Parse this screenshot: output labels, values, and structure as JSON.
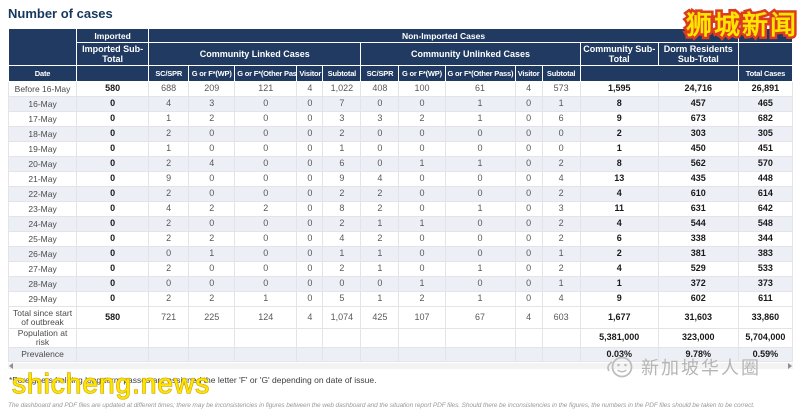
{
  "chart_data": {
    "type": "table",
    "title": "Number of cases",
    "header": {
      "imported_group": "Imported",
      "non_imported_group": "Non-Imported Cases",
      "imported_sub_total": "Imported Sub-Total",
      "community_linked_group": "Community Linked Cases",
      "community_unlinked_group": "Community Unlinked Cases",
      "sub_columns": [
        "SC/SPR",
        "G or F*(WP)",
        "G or F*(Other Pass)",
        "Visitor",
        "Subtotal"
      ],
      "date": "Date",
      "community_sub_total": "Community Sub-Total",
      "dorm_residents_sub_total": "Dorm Residents Sub-Total",
      "total_cases": "Total Cases"
    },
    "columns": [
      "Date",
      "Imported Sub-Total",
      "Community Linked SC/SPR",
      "Community Linked G or F*(WP)",
      "Community Linked G or F*(Other Pass)",
      "Community Linked Visitor",
      "Community Linked Subtotal",
      "Community Unlinked SC/SPR",
      "Community Unlinked G or F*(WP)",
      "Community Unlinked G or F*(Other Pass)",
      "Community Unlinked Visitor",
      "Community Unlinked Subtotal",
      "Community Sub-Total",
      "Dorm Residents Sub-Total",
      "Total Cases"
    ],
    "rows": [
      {
        "label": "Before 16-May",
        "kind": "data",
        "values": [
          "580",
          "688",
          "209",
          "121",
          "4",
          "1,022",
          "408",
          "100",
          "61",
          "4",
          "573",
          "1,595",
          "24,716",
          "26,891"
        ]
      },
      {
        "label": "16-May",
        "kind": "data",
        "values": [
          "0",
          "4",
          "3",
          "0",
          "0",
          "7",
          "0",
          "0",
          "1",
          "0",
          "1",
          "8",
          "457",
          "465"
        ]
      },
      {
        "label": "17-May",
        "kind": "data",
        "values": [
          "0",
          "1",
          "2",
          "0",
          "0",
          "3",
          "3",
          "2",
          "1",
          "0",
          "6",
          "9",
          "673",
          "682"
        ]
      },
      {
        "label": "18-May",
        "kind": "data",
        "values": [
          "0",
          "2",
          "0",
          "0",
          "0",
          "2",
          "0",
          "0",
          "0",
          "0",
          "0",
          "2",
          "303",
          "305"
        ]
      },
      {
        "label": "19-May",
        "kind": "data",
        "values": [
          "0",
          "1",
          "0",
          "0",
          "0",
          "1",
          "0",
          "0",
          "0",
          "0",
          "0",
          "1",
          "450",
          "451"
        ]
      },
      {
        "label": "20-May",
        "kind": "data",
        "values": [
          "0",
          "2",
          "4",
          "0",
          "0",
          "6",
          "0",
          "1",
          "1",
          "0",
          "2",
          "8",
          "562",
          "570"
        ]
      },
      {
        "label": "21-May",
        "kind": "data",
        "values": [
          "0",
          "9",
          "0",
          "0",
          "0",
          "9",
          "4",
          "0",
          "0",
          "0",
          "4",
          "13",
          "435",
          "448"
        ]
      },
      {
        "label": "22-May",
        "kind": "data",
        "values": [
          "0",
          "2",
          "0",
          "0",
          "0",
          "2",
          "2",
          "0",
          "0",
          "0",
          "2",
          "4",
          "610",
          "614"
        ]
      },
      {
        "label": "23-May",
        "kind": "data",
        "values": [
          "0",
          "4",
          "2",
          "2",
          "0",
          "8",
          "2",
          "0",
          "1",
          "0",
          "3",
          "11",
          "631",
          "642"
        ]
      },
      {
        "label": "24-May",
        "kind": "data",
        "values": [
          "0",
          "2",
          "0",
          "0",
          "0",
          "2",
          "1",
          "1",
          "0",
          "0",
          "2",
          "4",
          "544",
          "548"
        ]
      },
      {
        "label": "25-May",
        "kind": "data",
        "values": [
          "0",
          "2",
          "2",
          "0",
          "0",
          "4",
          "2",
          "0",
          "0",
          "0",
          "2",
          "6",
          "338",
          "344"
        ]
      },
      {
        "label": "26-May",
        "kind": "data",
        "values": [
          "0",
          "0",
          "1",
          "0",
          "0",
          "1",
          "1",
          "0",
          "0",
          "0",
          "1",
          "2",
          "381",
          "383"
        ]
      },
      {
        "label": "27-May",
        "kind": "data",
        "values": [
          "0",
          "2",
          "0",
          "0",
          "0",
          "2",
          "1",
          "0",
          "1",
          "0",
          "2",
          "4",
          "529",
          "533"
        ]
      },
      {
        "label": "28-May",
        "kind": "data",
        "values": [
          "0",
          "0",
          "0",
          "0",
          "0",
          "0",
          "0",
          "1",
          "0",
          "0",
          "1",
          "1",
          "372",
          "373"
        ]
      },
      {
        "label": "29-May",
        "kind": "data",
        "values": [
          "0",
          "2",
          "2",
          "1",
          "0",
          "5",
          "1",
          "2",
          "1",
          "0",
          "4",
          "9",
          "602",
          "611"
        ]
      },
      {
        "label": "Total since start of outbreak",
        "kind": "total",
        "values": [
          "580",
          "721",
          "225",
          "124",
          "4",
          "1,074",
          "425",
          "107",
          "67",
          "4",
          "603",
          "1,677",
          "31,603",
          "33,860"
        ]
      },
      {
        "label": "Population at risk",
        "kind": "meta",
        "values": [
          "",
          "",
          "",
          "",
          "",
          "",
          "",
          "",
          "",
          "",
          "",
          "5,381,000",
          "323,000",
          "5,704,000"
        ]
      },
      {
        "label": "Prevalence",
        "kind": "meta",
        "values": [
          "",
          "",
          "",
          "",
          "",
          "",
          "",
          "",
          "",
          "",
          "",
          "0.03%",
          "9.78%",
          "0.59%"
        ]
      }
    ]
  },
  "footnotes": {
    "pass_note": "*Foreigners holding long-term passes are assigned the letter 'F' or 'G' depending on date of issue.",
    "disclaimer": "The dashboard and PDF files are updated at different times; there may be inconsistencies in figures between the web dashboard and the situation report PDF files. Should there be inconsistencies in the figures, the numbers in the PDF files should be taken to be correct."
  },
  "watermarks": {
    "top_right": "狮城新闻",
    "bottom_left": "shicheng.news",
    "bottom_right": "新加坡华人圈"
  },
  "colors": {
    "header_navy": "#203A61",
    "title_navy": "#17375E",
    "row_stripe": "#EDEFF6",
    "watermark_yellow": "#FFE400",
    "watermark_red_outline": "#DB3B21",
    "logo_gray": "#B5B5B5"
  }
}
